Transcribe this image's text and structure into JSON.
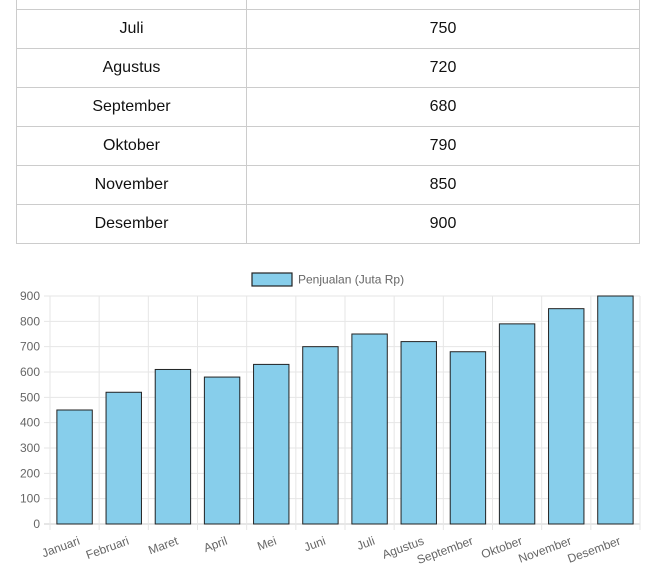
{
  "table": {
    "rows": [
      {
        "month": "",
        "value": ""
      },
      {
        "month": "Juli",
        "value": "750"
      },
      {
        "month": "Agustus",
        "value": "720"
      },
      {
        "month": "September",
        "value": "680"
      },
      {
        "month": "Oktober",
        "value": "790"
      },
      {
        "month": "November",
        "value": "850"
      },
      {
        "month": "Desember",
        "value": "900"
      }
    ]
  },
  "chart_data": {
    "type": "bar",
    "categories": [
      "Januari",
      "Februari",
      "Maret",
      "April",
      "Mei",
      "Juni",
      "Juli",
      "Agustus",
      "September",
      "Oktober",
      "November",
      "Desember"
    ],
    "series": [
      {
        "name": "Penjualan (Juta Rp)",
        "values": [
          450,
          520,
          610,
          580,
          630,
          700,
          750,
          720,
          680,
          790,
          850,
          900
        ]
      }
    ],
    "ylim": [
      0,
      900
    ],
    "yticks": [
      0,
      100,
      200,
      300,
      400,
      500,
      600,
      700,
      800,
      900
    ],
    "grid": true,
    "legend": "top-center",
    "bar_color": "#87ceeb",
    "bar_border_color": "#222222"
  }
}
